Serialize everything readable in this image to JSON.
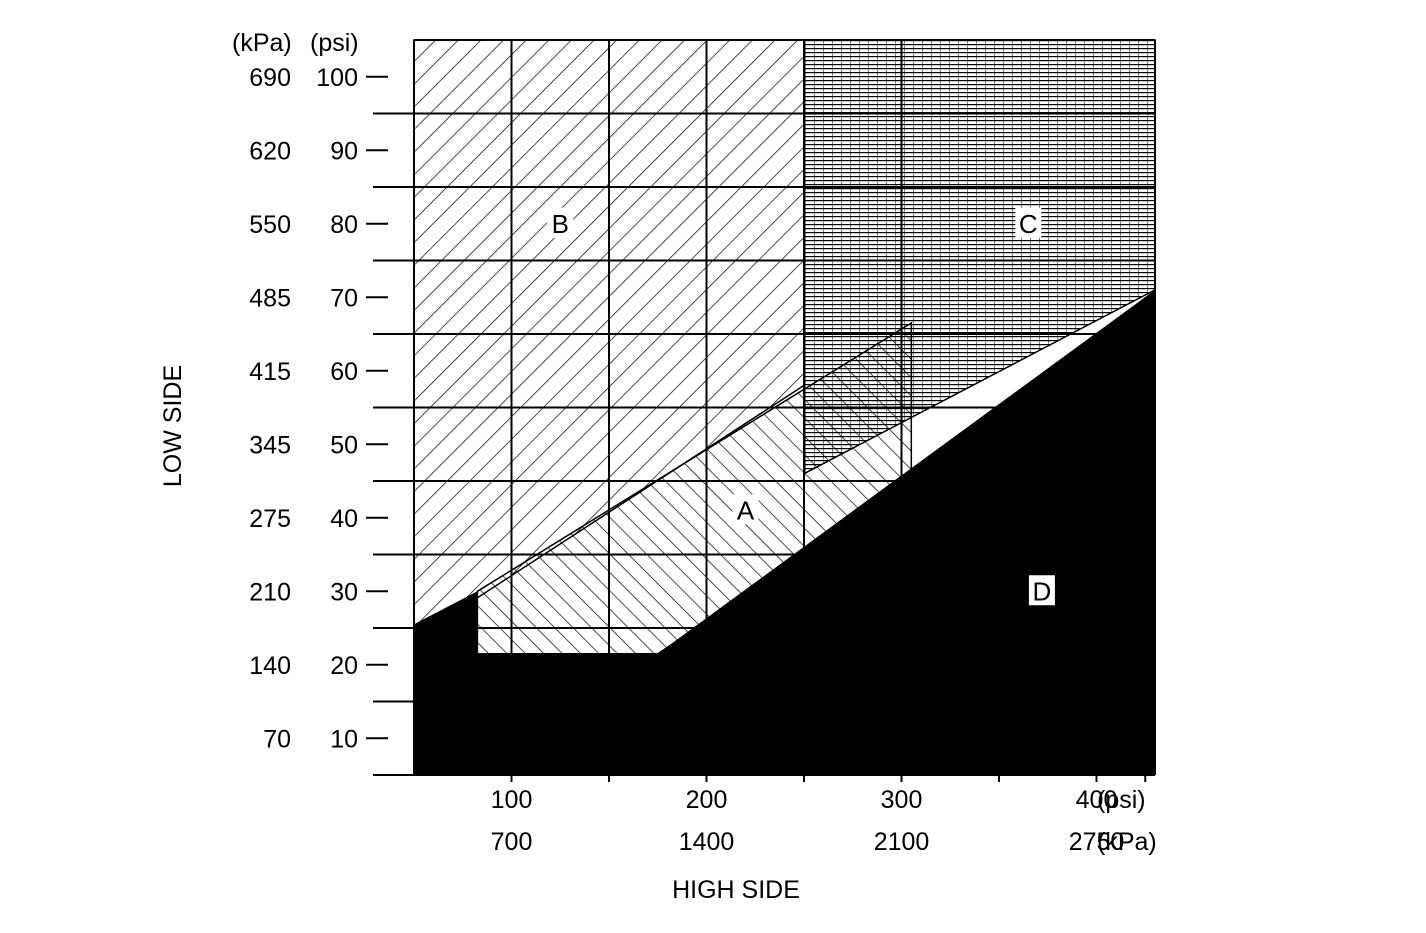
{
  "chart_data": {
    "type": "area",
    "title": "",
    "xlabel": "HIGH SIDE",
    "ylabel": "LOW SIDE",
    "x_units": [
      "(psi)",
      "(kPa)"
    ],
    "y_units": [
      "(kPa)",
      "(psi)"
    ],
    "xlim_psi": [
      50,
      430
    ],
    "ylim_psi": [
      5,
      105
    ],
    "grid": true,
    "x_ticks": [
      {
        "psi": 100,
        "kpa": "700"
      },
      {
        "psi": 200,
        "kpa": "1400"
      },
      {
        "psi": 300,
        "kpa": "2100"
      },
      {
        "psi": 400,
        "kpa": "2750"
      }
    ],
    "y_ticks": [
      {
        "psi": 10,
        "kpa": "70"
      },
      {
        "psi": 20,
        "kpa": "140"
      },
      {
        "psi": 30,
        "kpa": "210"
      },
      {
        "psi": 40,
        "kpa": "275"
      },
      {
        "psi": 50,
        "kpa": "345"
      },
      {
        "psi": 60,
        "kpa": "415"
      },
      {
        "psi": 70,
        "kpa": "485"
      },
      {
        "psi": 80,
        "kpa": "550"
      },
      {
        "psi": 90,
        "kpa": "620"
      },
      {
        "psi": 100,
        "kpa": "690"
      }
    ],
    "colors": {
      "ink": "#000000",
      "paper": "#ffffff"
    },
    "regions": [
      {
        "name": "B",
        "pattern": "diagonal-forward",
        "label_at": [
          125,
          80
        ],
        "polygon": [
          [
            50,
            105
          ],
          [
            250,
            105
          ],
          [
            250,
            58
          ],
          [
            50,
            23.5
          ]
        ]
      },
      {
        "name": "C",
        "pattern": "dense-horizontal",
        "label_at": [
          365,
          80
        ],
        "polygon": [
          [
            250,
            105
          ],
          [
            430,
            105
          ],
          [
            430,
            71
          ],
          [
            250,
            46
          ]
        ]
      },
      {
        "name": "A",
        "pattern": "diagonal-backward",
        "label_at": [
          220,
          41
        ],
        "polygon": [
          [
            82.5,
            30
          ],
          [
            305,
            66.5
          ],
          [
            305,
            44.5
          ],
          [
            175,
            21.5
          ],
          [
            82.5,
            21.5
          ]
        ]
      },
      {
        "name": "D",
        "pattern": "solid",
        "label_at": [
          372,
          30
        ],
        "polygon": [
          [
            50,
            5
          ],
          [
            50,
            25.5
          ],
          [
            82.5,
            30
          ],
          [
            82.5,
            21.5
          ],
          [
            175,
            21.5
          ],
          [
            430,
            71
          ],
          [
            430,
            5
          ]
        ]
      }
    ]
  }
}
